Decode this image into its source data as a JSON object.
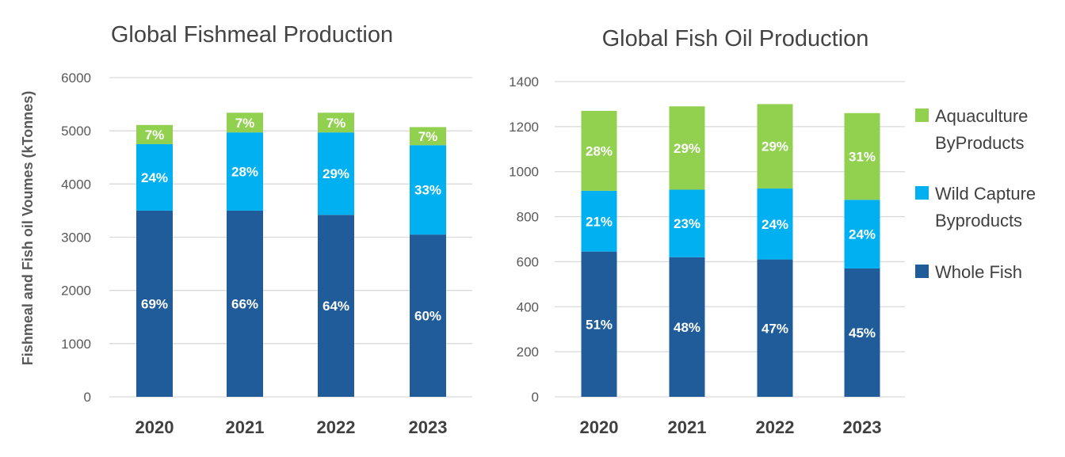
{
  "ylabel": "Fishmeal and Fish oil Voumes (kTonnes)",
  "legend": [
    {
      "series": "Aquaculture ByProducts",
      "lines": [
        "Aquaculture",
        "ByProducts"
      ],
      "color": "#92D050"
    },
    {
      "series": "Wild Capture Byproducts",
      "lines": [
        "Wild Capture",
        "Byproducts"
      ],
      "color": "#00B0F0"
    },
    {
      "series": "Whole Fish",
      "lines": [
        "Whole Fish"
      ],
      "color": "#1F5C99"
    }
  ],
  "chart_data": [
    {
      "type": "bar",
      "stacked": true,
      "title": "Global Fishmeal Production",
      "ylabel": "Fishmeal and Fish oil Voumes (kTonnes)",
      "categories": [
        "2020",
        "2021",
        "2022",
        "2023"
      ],
      "ylim": [
        0,
        6000
      ],
      "yticks": [
        "0",
        "1000",
        "2000",
        "3000",
        "4000",
        "5000",
        "6000"
      ],
      "grid": true,
      "series": [
        {
          "name": "Whole Fish",
          "color": "#1F5C99",
          "values": [
            3500,
            3500,
            3420,
            3050
          ],
          "labels": [
            "69%",
            "66%",
            "64%",
            "60%"
          ]
        },
        {
          "name": "Wild Capture Byproducts",
          "color": "#00B0F0",
          "values": [
            1250,
            1470,
            1550,
            1680
          ],
          "labels": [
            "24%",
            "28%",
            "29%",
            "33%"
          ]
        },
        {
          "name": "Aquaculture ByProducts",
          "color": "#92D050",
          "values": [
            360,
            370,
            370,
            340
          ],
          "labels": [
            "7%",
            "7%",
            "7%",
            "7%"
          ]
        }
      ]
    },
    {
      "type": "bar",
      "stacked": true,
      "title": "Global Fish Oil Production",
      "categories": [
        "2020",
        "2021",
        "2022",
        "2023"
      ],
      "ylim": [
        0,
        1400
      ],
      "yticks": [
        "0",
        "200",
        "400",
        "600",
        "800",
        "1000",
        "1200",
        "1400"
      ],
      "grid": true,
      "legend_position": "right",
      "series": [
        {
          "name": "Whole Fish",
          "color": "#1F5C99",
          "values": [
            645,
            620,
            610,
            570
          ],
          "labels": [
            "51%",
            "48%",
            "47%",
            "45%"
          ]
        },
        {
          "name": "Wild Capture Byproducts",
          "color": "#00B0F0",
          "values": [
            270,
            300,
            315,
            305
          ],
          "labels": [
            "21%",
            "23%",
            "24%",
            "24%"
          ]
        },
        {
          "name": "Aquaculture ByProducts",
          "color": "#92D050",
          "values": [
            355,
            370,
            375,
            385
          ],
          "labels": [
            "28%",
            "29%",
            "29%",
            "31%"
          ]
        }
      ]
    }
  ]
}
